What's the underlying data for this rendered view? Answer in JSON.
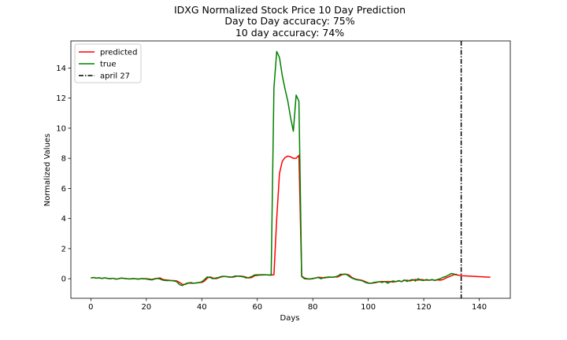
{
  "chart_data": {
    "type": "line",
    "title": "IDXG Normalized Stock Price 10 Day Prediction",
    "subtitles": [
      "Day to Day accuracy: 75%",
      "10 day accuracy: 74%"
    ],
    "xlabel": "Days",
    "ylabel": "Normalized Values",
    "xlim": [
      -7.2,
      151.2
    ],
    "ylim": [
      -1.3,
      15.8
    ],
    "xticks": [
      0,
      20,
      40,
      60,
      80,
      100,
      120,
      140
    ],
    "yticks": [
      0,
      2,
      4,
      6,
      8,
      10,
      12,
      14
    ],
    "grid": false,
    "legend_position": "top-left",
    "series": [
      {
        "name": "predicted",
        "color": "#ff0000",
        "points": [
          [
            0,
            0.05
          ],
          [
            1,
            0.08
          ],
          [
            2,
            0.04
          ],
          [
            3,
            0.06
          ],
          [
            4,
            0.02
          ],
          [
            5,
            0.05
          ],
          [
            6,
            0.03
          ],
          [
            7,
            0.0
          ],
          [
            8,
            0.03
          ],
          [
            9,
            -0.02
          ],
          [
            10,
            0.0
          ],
          [
            11,
            0.04
          ],
          [
            12,
            0.02
          ],
          [
            13,
            0.0
          ],
          [
            14,
            -0.01
          ],
          [
            15,
            0.01
          ],
          [
            16,
            0.0
          ],
          [
            17,
            -0.02
          ],
          [
            18,
            0.0
          ],
          [
            19,
            0.01
          ],
          [
            20,
            0.0
          ],
          [
            21,
            -0.02
          ],
          [
            22,
            -0.05
          ],
          [
            23,
            0.0
          ],
          [
            24,
            0.03
          ],
          [
            25,
            0.05
          ],
          [
            26,
            -0.05
          ],
          [
            27,
            -0.08
          ],
          [
            28,
            -0.1
          ],
          [
            29,
            -0.12
          ],
          [
            30,
            -0.12
          ],
          [
            31,
            -0.15
          ],
          [
            32,
            -0.25
          ],
          [
            33,
            -0.38
          ],
          [
            34,
            -0.38
          ],
          [
            35,
            -0.3
          ],
          [
            36,
            -0.25
          ],
          [
            37,
            -0.3
          ],
          [
            38,
            -0.28
          ],
          [
            39,
            -0.25
          ],
          [
            40,
            -0.25
          ],
          [
            41,
            -0.15
          ],
          [
            42,
            0.05
          ],
          [
            43,
            0.12
          ],
          [
            44,
            0.05
          ],
          [
            45,
            0.0
          ],
          [
            46,
            0.05
          ],
          [
            47,
            0.12
          ],
          [
            48,
            0.15
          ],
          [
            49,
            0.14
          ],
          [
            50,
            0.12
          ],
          [
            51,
            0.1
          ],
          [
            52,
            0.14
          ],
          [
            53,
            0.18
          ],
          [
            54,
            0.17
          ],
          [
            55,
            0.15
          ],
          [
            56,
            0.1
          ],
          [
            57,
            0.05
          ],
          [
            58,
            0.08
          ],
          [
            59,
            0.2
          ],
          [
            60,
            0.22
          ],
          [
            61,
            0.24
          ],
          [
            62,
            0.25
          ],
          [
            63,
            0.26
          ],
          [
            64,
            0.25
          ],
          [
            65,
            0.24
          ],
          [
            66,
            0.26
          ],
          [
            67,
            4.0
          ],
          [
            68,
            7.0
          ],
          [
            69,
            7.8
          ],
          [
            70,
            8.05
          ],
          [
            71,
            8.15
          ],
          [
            72,
            8.1
          ],
          [
            73,
            8.0
          ],
          [
            74,
            8.0
          ],
          [
            75,
            8.2
          ],
          [
            76,
            0.18
          ],
          [
            77,
            0.05
          ],
          [
            78,
            0.0
          ],
          [
            79,
            -0.02
          ],
          [
            80,
            0.0
          ],
          [
            81,
            0.05
          ],
          [
            82,
            0.1
          ],
          [
            83,
            0.08
          ],
          [
            84,
            0.05
          ],
          [
            85,
            0.08
          ],
          [
            86,
            0.1
          ],
          [
            87,
            0.1
          ],
          [
            88,
            0.12
          ],
          [
            89,
            0.12
          ],
          [
            90,
            0.22
          ],
          [
            91,
            0.3
          ],
          [
            92,
            0.3
          ],
          [
            93,
            0.25
          ],
          [
            94,
            0.1
          ],
          [
            95,
            0.0
          ],
          [
            96,
            -0.05
          ],
          [
            97,
            -0.08
          ],
          [
            98,
            -0.12
          ],
          [
            99,
            -0.2
          ],
          [
            100,
            -0.28
          ],
          [
            101,
            -0.3
          ],
          [
            102,
            -0.28
          ],
          [
            103,
            -0.25
          ],
          [
            104,
            -0.2
          ],
          [
            105,
            -0.18
          ],
          [
            106,
            -0.2
          ],
          [
            107,
            -0.18
          ],
          [
            108,
            -0.2
          ],
          [
            109,
            -0.22
          ],
          [
            110,
            -0.18
          ],
          [
            111,
            -0.15
          ],
          [
            112,
            -0.18
          ],
          [
            113,
            -0.12
          ],
          [
            114,
            -0.1
          ],
          [
            115,
            -0.15
          ],
          [
            116,
            -0.1
          ],
          [
            117,
            -0.05
          ],
          [
            118,
            -0.1
          ],
          [
            119,
            -0.05
          ],
          [
            120,
            -0.08
          ],
          [
            121,
            -0.1
          ],
          [
            122,
            -0.1
          ],
          [
            123,
            -0.08
          ],
          [
            124,
            -0.1
          ],
          [
            125,
            -0.08
          ],
          [
            126,
            -0.1
          ],
          [
            127,
            -0.05
          ],
          [
            128,
            0.05
          ],
          [
            129,
            0.12
          ],
          [
            130,
            0.2
          ],
          [
            131,
            0.28
          ],
          [
            132,
            0.25
          ],
          [
            133,
            0.22
          ],
          [
            134,
            0.2
          ],
          [
            144,
            0.1
          ]
        ]
      },
      {
        "name": "true",
        "color": "#008000",
        "points": [
          [
            0,
            0.05
          ],
          [
            1,
            0.08
          ],
          [
            2,
            0.04
          ],
          [
            3,
            0.06
          ],
          [
            4,
            0.02
          ],
          [
            5,
            0.06
          ],
          [
            6,
            0.02
          ],
          [
            7,
            0.0
          ],
          [
            8,
            0.03
          ],
          [
            9,
            -0.03
          ],
          [
            10,
            0.0
          ],
          [
            11,
            0.05
          ],
          [
            12,
            0.02
          ],
          [
            13,
            0.0
          ],
          [
            14,
            -0.02
          ],
          [
            15,
            0.0
          ],
          [
            16,
            0.0
          ],
          [
            17,
            -0.03
          ],
          [
            18,
            0.0
          ],
          [
            19,
            0.0
          ],
          [
            20,
            -0.02
          ],
          [
            21,
            -0.05
          ],
          [
            22,
            -0.08
          ],
          [
            23,
            -0.02
          ],
          [
            24,
            0.02
          ],
          [
            25,
            -0.02
          ],
          [
            26,
            -0.1
          ],
          [
            27,
            -0.12
          ],
          [
            28,
            -0.12
          ],
          [
            29,
            -0.12
          ],
          [
            30,
            -0.15
          ],
          [
            31,
            -0.2
          ],
          [
            32,
            -0.4
          ],
          [
            33,
            -0.45
          ],
          [
            34,
            -0.35
          ],
          [
            35,
            -0.28
          ],
          [
            36,
            -0.3
          ],
          [
            37,
            -0.3
          ],
          [
            38,
            -0.28
          ],
          [
            39,
            -0.26
          ],
          [
            40,
            -0.2
          ],
          [
            41,
            -0.05
          ],
          [
            42,
            0.12
          ],
          [
            43,
            0.08
          ],
          [
            44,
            0.0
          ],
          [
            45,
            0.05
          ],
          [
            46,
            0.08
          ],
          [
            47,
            0.15
          ],
          [
            48,
            0.16
          ],
          [
            49,
            0.14
          ],
          [
            50,
            0.1
          ],
          [
            51,
            0.12
          ],
          [
            52,
            0.18
          ],
          [
            53,
            0.17
          ],
          [
            54,
            0.15
          ],
          [
            55,
            0.12
          ],
          [
            56,
            0.05
          ],
          [
            57,
            0.08
          ],
          [
            58,
            0.15
          ],
          [
            59,
            0.25
          ],
          [
            60,
            0.26
          ],
          [
            61,
            0.26
          ],
          [
            62,
            0.27
          ],
          [
            63,
            0.26
          ],
          [
            64,
            0.25
          ],
          [
            65,
            0.24
          ],
          [
            66,
            12.7
          ],
          [
            67,
            15.1
          ],
          [
            68,
            14.7
          ],
          [
            69,
            13.5
          ],
          [
            70,
            12.6
          ],
          [
            71,
            11.8
          ],
          [
            72,
            10.7
          ],
          [
            73,
            9.8
          ],
          [
            74,
            12.2
          ],
          [
            75,
            11.8
          ],
          [
            76,
            0.15
          ],
          [
            77,
            0.0
          ],
          [
            78,
            -0.02
          ],
          [
            79,
            -0.02
          ],
          [
            80,
            0.02
          ],
          [
            81,
            0.05
          ],
          [
            82,
            0.08
          ],
          [
            83,
            0.0
          ],
          [
            84,
            0.08
          ],
          [
            85,
            0.1
          ],
          [
            86,
            0.12
          ],
          [
            87,
            0.1
          ],
          [
            88,
            0.12
          ],
          [
            89,
            0.18
          ],
          [
            90,
            0.3
          ],
          [
            91,
            0.28
          ],
          [
            92,
            0.3
          ],
          [
            93,
            0.18
          ],
          [
            94,
            0.05
          ],
          [
            95,
            -0.02
          ],
          [
            96,
            -0.08
          ],
          [
            97,
            -0.1
          ],
          [
            98,
            -0.15
          ],
          [
            99,
            -0.25
          ],
          [
            100,
            -0.3
          ],
          [
            101,
            -0.3
          ],
          [
            102,
            -0.25
          ],
          [
            103,
            -0.22
          ],
          [
            104,
            -0.2
          ],
          [
            105,
            -0.25
          ],
          [
            106,
            -0.18
          ],
          [
            107,
            -0.3
          ],
          [
            108,
            -0.2
          ],
          [
            109,
            -0.15
          ],
          [
            110,
            -0.2
          ],
          [
            111,
            -0.12
          ],
          [
            112,
            -0.2
          ],
          [
            113,
            -0.08
          ],
          [
            114,
            -0.18
          ],
          [
            115,
            -0.1
          ],
          [
            116,
            -0.05
          ],
          [
            117,
            -0.15
          ],
          [
            118,
            0.0
          ],
          [
            119,
            -0.1
          ],
          [
            120,
            -0.12
          ],
          [
            121,
            -0.05
          ],
          [
            122,
            -0.1
          ],
          [
            123,
            -0.05
          ],
          [
            124,
            -0.12
          ],
          [
            125,
            -0.05
          ],
          [
            126,
            0.0
          ],
          [
            127,
            0.1
          ],
          [
            128,
            0.15
          ],
          [
            129,
            0.25
          ],
          [
            130,
            0.35
          ],
          [
            131,
            0.3
          ],
          [
            132,
            0.28
          ]
        ]
      }
    ],
    "vline": {
      "name": "april 27",
      "x": 133.5,
      "color": "#000000",
      "style": "dashdot"
    }
  }
}
